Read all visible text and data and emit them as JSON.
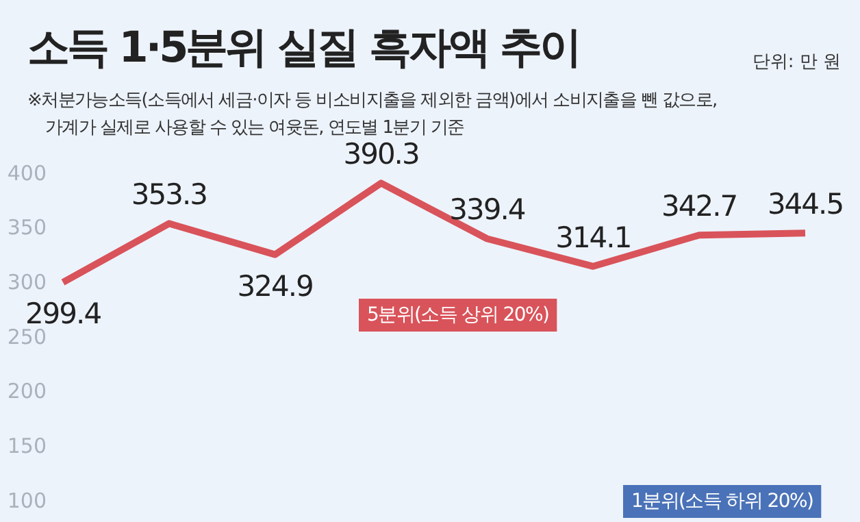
{
  "chart_data": {
    "type": "line",
    "title": "소득 1·5분위 실질 흑자액 추이",
    "subtitle": "단위: 만 원",
    "annotations": [
      "※처분가능소득(소득에서 세금·이자 등 비소비지출을 제외한 금액)에서 소비지출을 뺀 값으로,",
      "가계가 실제로 사용할 수 있는 여윳돈, 연도별 1분기 기준"
    ],
    "categories": [
      null,
      null,
      null,
      null,
      null,
      null,
      null,
      null
    ],
    "series": [
      {
        "name": "5분위(소득 상위 20%)",
        "color": "#d9535a",
        "values": [
          299.4,
          353.3,
          324.9,
          390.3,
          339.4,
          314.1,
          342.7,
          344.5
        ]
      },
      {
        "name": "1분위(소득 하위 20%)",
        "values": [
          null,
          null,
          null,
          null,
          null,
          null,
          null,
          null
        ]
      }
    ],
    "ylim": [
      80,
      558
    ],
    "yticks": [
      100,
      150,
      200,
      250,
      300,
      350,
      400
    ],
    "data_labels": true,
    "tick_labels": "y",
    "grid": false,
    "legend": false,
    "marker": "none",
    "line_style": "solid"
  }
}
